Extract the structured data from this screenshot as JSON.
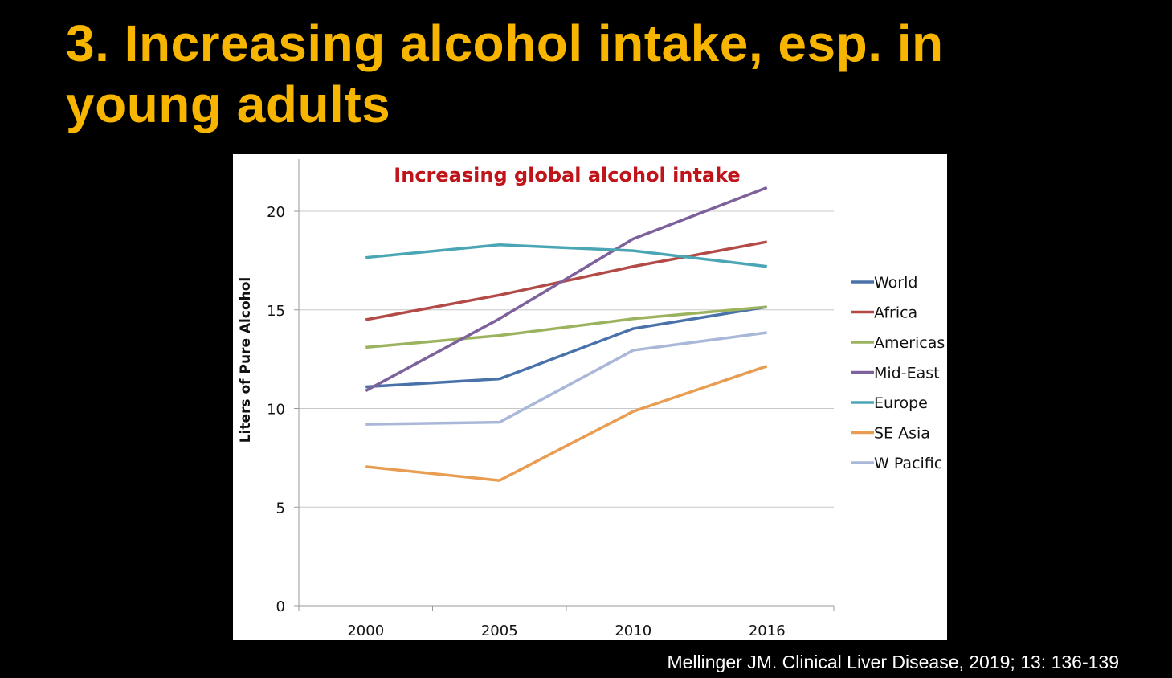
{
  "slide": {
    "title": "3. Increasing alcohol intake, esp. in young adults",
    "citation": "Mellinger JM. Clinical Liver Disease, 2019; 13: 136-139"
  },
  "chart_data": {
    "type": "line",
    "title": "Increasing global alcohol intake",
    "title_color": "#c0141b",
    "xlabel": "",
    "ylabel": "Liters of Pure Alcohol",
    "categories": [
      "2000",
      "2005",
      "2010",
      "2016"
    ],
    "ylim": [
      0,
      22
    ],
    "yticks": [
      0,
      5,
      10,
      15,
      20
    ],
    "grid": true,
    "legend": "right",
    "series": [
      {
        "name": "World",
        "color": "#4a72aa",
        "values": [
          11.1,
          11.5,
          14.05,
          15.15
        ]
      },
      {
        "name": "Africa",
        "color": "#b24b48",
        "values": [
          14.5,
          15.75,
          17.2,
          18.45
        ]
      },
      {
        "name": "Americas",
        "color": "#9bb35f",
        "values": [
          13.1,
          13.7,
          14.55,
          15.15
        ]
      },
      {
        "name": "Mid-East",
        "color": "#7d619a",
        "values": [
          10.9,
          14.55,
          18.6,
          21.2
        ]
      },
      {
        "name": "Europe",
        "color": "#4aa6b4",
        "values": [
          17.65,
          18.3,
          18.0,
          17.2
        ]
      },
      {
        "name": "SE Asia",
        "color": "#e89d52",
        "values": [
          7.05,
          6.35,
          9.85,
          12.15
        ]
      },
      {
        "name": "W Pacific",
        "color": "#a9b7d8",
        "values": [
          9.2,
          9.3,
          12.95,
          13.85
        ]
      }
    ]
  }
}
